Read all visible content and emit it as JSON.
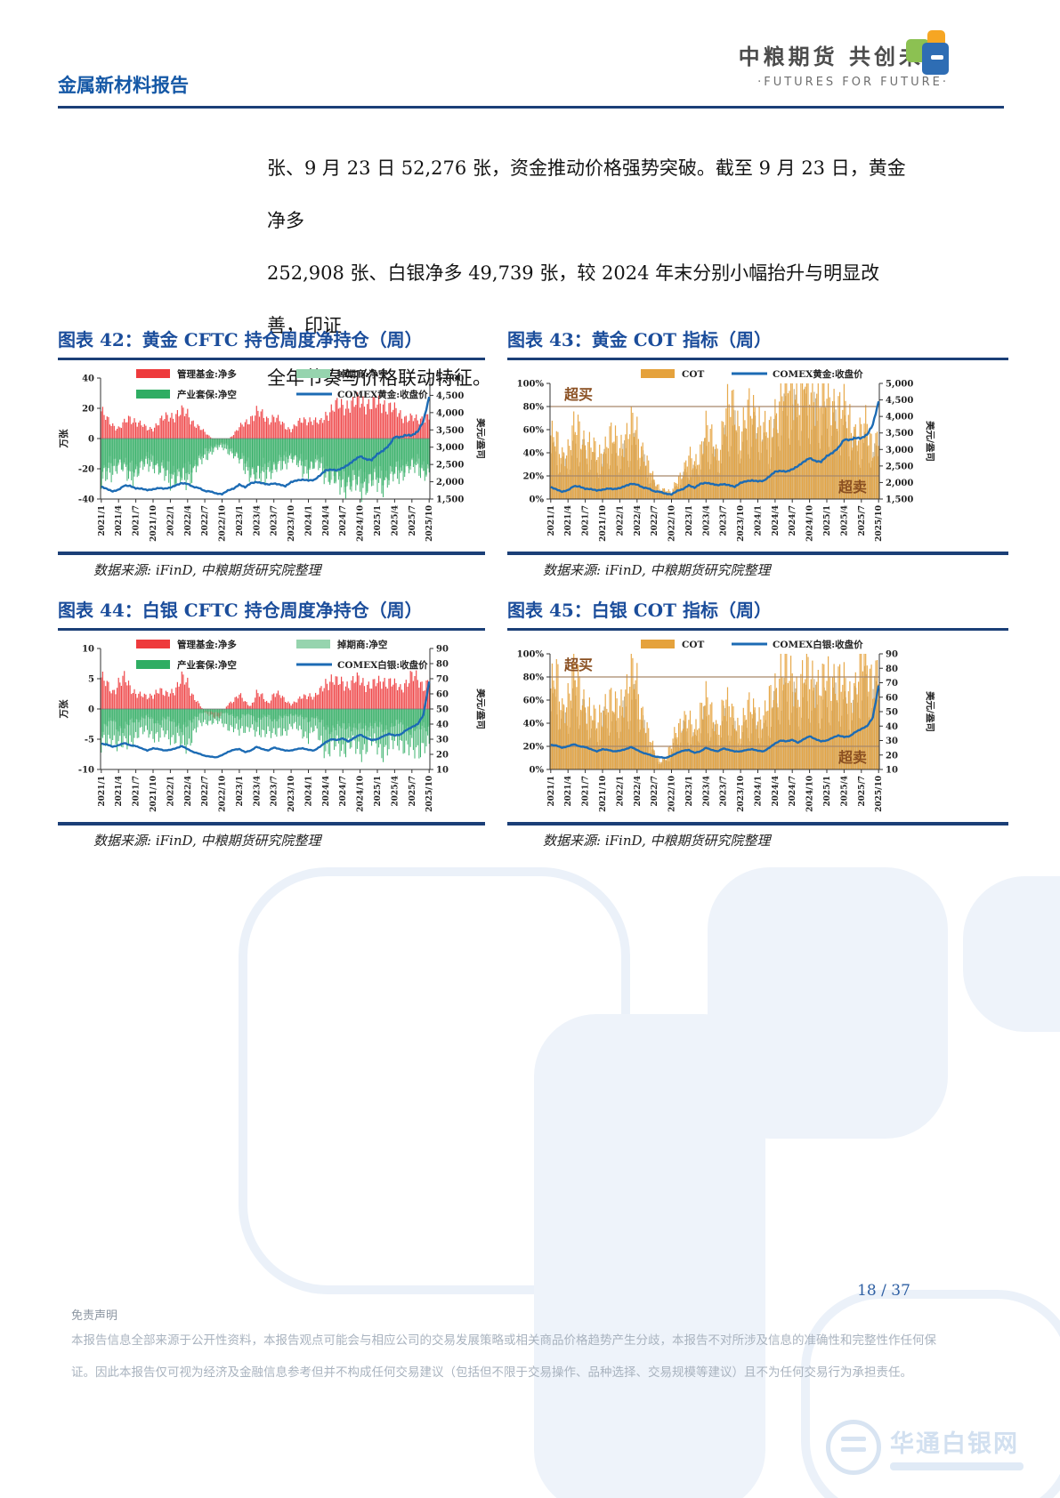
{
  "header": {
    "report_type": "金属新材料报告",
    "brand_cn": "中粮期货 共创未来",
    "brand_en": "·FUTURES FOR FUTURE·"
  },
  "paragraph": {
    "lines": [
      "张、9 月 23 日 52,276 张，资金推动价格强势突破。截至 9 月 23 日，黄金净多",
      "252,908 张、白银净多 49,739 张，较 2024 年末分别小幅抬升与明显改善，印证",
      "全年节奏与价格联动特征。"
    ]
  },
  "figures": [
    {
      "title": "图表 42：黄金 CFTC 持仓周度净持仓（周）",
      "source": "数据来源: iFinD,  中粮期货研究院整理"
    },
    {
      "title": "图表 43：黄金 COT 指标（周）",
      "source": "数据来源: iFinD,  中粮期货研究院整理"
    },
    {
      "title": "图表 44：白银 CFTC 持仓周度净持仓（周）",
      "source": "数据来源: iFinD,  中粮期货研究院整理"
    },
    {
      "title": "图表 45：白银 COT 指标（周）",
      "source": "数据来源: iFinD,  中粮期货研究院整理"
    }
  ],
  "footer": {
    "page_num": "18 / 37",
    "disclaimer_title": "免责声明",
    "disclaimer_lines": [
      "本报告信息全部来源于公开性资料，本报告观点可能会与相应公司的交易发展策略或相关商品价格趋势产生分歧，本报告不对所涉及信息的准确性和完整性作任何保",
      "证。因此本报告仅可视为经济及金融信息参考但并不构成任何交易建议（包括但不限于交易操作、品种选择、交易规模等建议）且不为任何交易行为承担责任。"
    ],
    "site_watermark": "华通白银网"
  },
  "colors": {
    "title_blue": "#1b4d9b",
    "navy": "#1b3f77",
    "red": "#ee3a3c",
    "light_green": "#96d4ae",
    "green": "#2fad63",
    "line_blue": "#1c6bb4",
    "orange": "#e5a23c",
    "tan": "#c8b592",
    "brown_note": "#8a4f21",
    "ref_line": "#a8886a"
  },
  "chart_data": {
    "note": "weekly series 2021/1-2025/10 sampled monthly (58 points per series); ticks shown quarterly",
    "x_ticks": [
      "2021/1",
      "2021/4",
      "2021/7",
      "2021/10",
      "2022/1",
      "2022/4",
      "2022/7",
      "2022/10",
      "2023/1",
      "2023/4",
      "2023/7",
      "2023/10",
      "2024/1",
      "2024/4",
      "2024/7",
      "2024/10",
      "2025/1",
      "2025/4",
      "2025/7",
      "2025/10"
    ],
    "months_per_tick": 3,
    "n_points": 58,
    "charts": [
      {
        "type": "bar+line",
        "title": "黄金CFTC持仓周度净持仓（周）",
        "legend": "grid",
        "left_axis": {
          "label": "万张",
          "min": -40,
          "max": 40,
          "step": 20,
          "format": "plain"
        },
        "right_axis": {
          "label": "美元/盎司",
          "min": 1500,
          "max": 5000,
          "step": 500,
          "format": "comma"
        },
        "bar_series": [
          {
            "name": "管理基金:净多",
            "color": "#ee3a3c",
            "width": 1.2,
            "values": [
              18,
              12,
              9,
              7,
              10,
              13,
              12,
              9,
              6,
              7,
              11,
              13,
              15,
              16,
              17,
              16,
              11,
              7,
              4,
              1,
              -2,
              -3,
              -1,
              3,
              7,
              10,
              14,
              17,
              15,
              13,
              14,
              11,
              8,
              6,
              9,
              12,
              13,
              11,
              10,
              16,
              19,
              21,
              22,
              23,
              22,
              25,
              24,
              22,
              22,
              24,
              21,
              18,
              16,
              14,
              13,
              12,
              14,
              15
            ]
          },
          {
            "name": "掉期商:净空",
            "color": "#96d4ae",
            "width": 2.0,
            "values": [
              -24,
              -19,
              -16,
              -14,
              -17,
              -20,
              -19,
              -16,
              -13,
              -13,
              -17,
              -19,
              -21,
              -22,
              -23,
              -22,
              -17,
              -13,
              -9,
              -6,
              -4,
              -3,
              -5,
              -8,
              -12,
              -15,
              -19,
              -22,
              -20,
              -17,
              -18,
              -15,
              -12,
              -10,
              -13,
              -16,
              -17,
              -15,
              -14,
              -20,
              -23,
              -25,
              -26,
              -27,
              -26,
              -28,
              -27,
              -25,
              -25,
              -26,
              -23,
              -21,
              -19,
              -17,
              -16,
              -15,
              -18,
              -20
            ]
          },
          {
            "name": "产业套保:净空",
            "color": "#2fad63",
            "width": 1.0,
            "values": [
              -30,
              -25,
              -21,
              -18,
              -22,
              -25,
              -24,
              -20,
              -17,
              -17,
              -22,
              -24,
              -26,
              -27,
              -28,
              -27,
              -22,
              -17,
              -13,
              -9,
              -7,
              -6,
              -8,
              -11,
              -15,
              -19,
              -23,
              -27,
              -25,
              -21,
              -22,
              -19,
              -16,
              -13,
              -17,
              -20,
              -21,
              -19,
              -18,
              -24,
              -27,
              -29,
              -30,
              -31,
              -30,
              -32,
              -31,
              -29,
              -29,
              -30,
              -27,
              -25,
              -23,
              -21,
              -20,
              -19,
              -22,
              -25
            ]
          }
        ],
        "line_series": [
          {
            "name": "COMEX黄金:收盘价",
            "color": "#1c6bb4",
            "values": [
              1860,
              1790,
              1720,
              1770,
              1890,
              1880,
              1810,
              1800,
              1760,
              1780,
              1820,
              1800,
              1830,
              1900,
              1960,
              1940,
              1850,
              1820,
              1730,
              1720,
              1660,
              1640,
              1750,
              1800,
              1920,
              1840,
              1960,
              1990,
              1960,
              1920,
              1950,
              1920,
              1870,
              1990,
              2040,
              2060,
              2040,
              2050,
              2180,
              2330,
              2350,
              2330,
              2400,
              2500,
              2630,
              2740,
              2650,
              2630,
              2800,
              2900,
              3050,
              3300,
              3290,
              3350,
              3340,
              3450,
              3750,
              4450
            ]
          }
        ],
        "ref_lines": [],
        "annotations": []
      },
      {
        "type": "bar+line",
        "title": "黄金COT指标（周）",
        "legend": "row",
        "left_axis": {
          "label": "",
          "min": 0,
          "max": 100,
          "step": 20,
          "format": "percent"
        },
        "right_axis": {
          "label": "美元/盎司",
          "min": 1500,
          "max": 5000,
          "step": 500,
          "format": "comma"
        },
        "bar_series": [
          {
            "name": "COT",
            "color": "#e5a23c",
            "width": 1.2,
            "backdrop_color": "#c8b592",
            "values": [
              55,
              48,
              40,
              45,
              58,
              60,
              52,
              46,
              38,
              42,
              55,
              50,
              48,
              55,
              62,
              58,
              45,
              28,
              15,
              10,
              8,
              5,
              18,
              25,
              35,
              30,
              45,
              60,
              50,
              42,
              65,
              78,
              82,
              60,
              68,
              80,
              75,
              60,
              55,
              78,
              92,
              98,
              100,
              96,
              99,
              100,
              95,
              90,
              85,
              90,
              80,
              75,
              70,
              60,
              55,
              65,
              48,
              55
            ]
          }
        ],
        "line_series": [
          {
            "name": "COMEX黄金:收盘价",
            "color": "#1c6bb4",
            "values": [
              1860,
              1790,
              1720,
              1770,
              1890,
              1880,
              1810,
              1800,
              1760,
              1780,
              1820,
              1800,
              1830,
              1900,
              1960,
              1940,
              1850,
              1820,
              1730,
              1720,
              1660,
              1640,
              1750,
              1800,
              1920,
              1840,
              1960,
              1990,
              1960,
              1920,
              1950,
              1920,
              1870,
              1990,
              2040,
              2060,
              2040,
              2050,
              2180,
              2330,
              2350,
              2330,
              2400,
              2500,
              2630,
              2740,
              2650,
              2630,
              2800,
              2900,
              3050,
              3300,
              3290,
              3350,
              3340,
              3450,
              3750,
              4450
            ]
          }
        ],
        "ref_lines": [
          80,
          20
        ],
        "annotations": [
          {
            "text": "超买",
            "pos": "top-left"
          },
          {
            "text": "超卖",
            "pos": "bottom-right"
          }
        ]
      },
      {
        "type": "bar+line",
        "title": "白银CFTC持仓周度净持仓（周）",
        "legend": "grid",
        "left_axis": {
          "label": "万张",
          "min": -10,
          "max": 10,
          "step": 5,
          "format": "plain"
        },
        "right_axis": {
          "label": "美元/盎司",
          "min": 10,
          "max": 90,
          "step": 10,
          "format": "plain"
        },
        "bar_series": [
          {
            "name": "管理基金:净多",
            "color": "#ee3a3c",
            "width": 1.2,
            "values": [
              5.2,
              3.8,
              2.8,
              4.5,
              4.8,
              3.5,
              2.8,
              2.2,
              1.8,
              2.5,
              3.2,
              2.2,
              2.8,
              3.5,
              4.8,
              4.2,
              2.2,
              0.8,
              -0.5,
              -1.2,
              -1.5,
              -0.8,
              0.8,
              1.5,
              2.2,
              1.2,
              0.5,
              2.5,
              2,
              1,
              2.5,
              2.2,
              1.5,
              0.8,
              1.2,
              2,
              2.5,
              1.8,
              2.8,
              4.5,
              4.8,
              4.2,
              4.5,
              4,
              4.5,
              4.8,
              4.2,
              3.8,
              4.2,
              4.8,
              4.5,
              3.8,
              3.5,
              4.5,
              5.2,
              4.8,
              4,
              4.5
            ]
          },
          {
            "name": "掉期商:净空",
            "color": "#96d4ae",
            "width": 2.0,
            "values": [
              -3.5,
              -2.5,
              -1.8,
              -3,
              -3.2,
              -2.2,
              -1.8,
              -1.5,
              -1.2,
              -1.8,
              -2.2,
              -1.5,
              -1.8,
              -2.2,
              -3.2,
              -2.8,
              -1.5,
              -0.8,
              -0.5,
              -0.4,
              -0.5,
              -0.6,
              -0.8,
              -1,
              -1.5,
              -1,
              -0.8,
              -1.8,
              -1.5,
              -1,
              -1.8,
              -1.5,
              -1.2,
              -0.8,
              -1,
              -1.4,
              -1.8,
              -1.2,
              -2,
              -3,
              -3.2,
              -2.8,
              -3,
              -2.6,
              -3,
              -3.2,
              -2.8,
              -2.5,
              -2.8,
              -3.2,
              -3,
              -2.5,
              -2.2,
              -3,
              -3.5,
              -3.2,
              -2.6,
              -3
            ]
          },
          {
            "name": "产业套保:净空",
            "color": "#2fad63",
            "width": 1.0,
            "values": [
              -6.5,
              -5.5,
              -4.5,
              -6,
              -6.2,
              -5,
              -4.5,
              -4,
              -3.5,
              -4.2,
              -5,
              -4,
              -4.5,
              -5,
              -6.2,
              -5.8,
              -4,
              -2.8,
              -2.2,
              -2,
              -2.2,
              -2.4,
              -2.8,
              -3.2,
              -4,
              -3.2,
              -2.8,
              -4.5,
              -4,
              -3.2,
              -4.5,
              -4,
              -3.5,
              -2.8,
              -3.2,
              -3.8,
              -4.5,
              -3.5,
              -4.8,
              -6.5,
              -6.8,
              -6,
              -6.5,
              -5.8,
              -6.5,
              -6.8,
              -6.2,
              -5.6,
              -6.2,
              -6.8,
              -6.5,
              -5.8,
              -5.2,
              -6.5,
              -7.2,
              -6.8,
              -5.8,
              -6.4
            ]
          }
        ],
        "line_series": [
          {
            "name": "COMEX白银:收盘价",
            "color": "#1c6bb4",
            "values": [
              27,
              26.5,
              25,
              26,
              27.5,
              26,
              25.5,
              24,
              22.5,
              24,
              23.5,
              22.5,
              23,
              24,
              25.5,
              23.5,
              21.5,
              20.5,
              19,
              18.5,
              18,
              19.5,
              21.5,
              23,
              23.5,
              21.5,
              22.5,
              25,
              23.5,
              22.5,
              24.5,
              23.5,
              22.5,
              22.5,
              23.5,
              24,
              23,
              22.5,
              25,
              28,
              30,
              29.5,
              30.5,
              28.5,
              31,
              33,
              31,
              29.5,
              30,
              32,
              33.5,
              32.5,
              33,
              36,
              38,
              40,
              46,
              68
            ]
          }
        ],
        "ref_lines": [],
        "annotations": []
      },
      {
        "type": "bar+line",
        "title": "白银COT指标（周）",
        "legend": "row",
        "left_axis": {
          "label": "",
          "min": 0,
          "max": 100,
          "step": 20,
          "format": "percent"
        },
        "right_axis": {
          "label": "美元/盎司",
          "min": 10,
          "max": 90,
          "step": 10,
          "format": "plain"
        },
        "bar_series": [
          {
            "name": "COT",
            "color": "#e5a23c",
            "width": 1.2,
            "backdrop_color": "#c8b592",
            "values": [
              70,
              78,
              55,
              65,
              80,
              72,
              60,
              48,
              40,
              55,
              62,
              50,
              60,
              68,
              80,
              75,
              50,
              30,
              15,
              8,
              10,
              20,
              38,
              45,
              40,
              32,
              55,
              60,
              45,
              38,
              58,
              52,
              45,
              38,
              48,
              55,
              50,
              42,
              58,
              75,
              85,
              80,
              82,
              70,
              78,
              85,
              80,
              72,
              75,
              85,
              80,
              70,
              65,
              78,
              95,
              90,
              82,
              88
            ]
          }
        ],
        "line_series": [
          {
            "name": "COMEX白银:收盘价",
            "color": "#1c6bb4",
            "values": [
              27,
              26.5,
              25,
              26,
              27.5,
              26,
              25.5,
              24,
              22.5,
              24,
              23.5,
              22.5,
              23,
              24,
              25.5,
              23.5,
              21.5,
              20.5,
              19,
              18.5,
              18,
              19.5,
              21.5,
              23,
              23.5,
              21.5,
              22.5,
              25,
              23.5,
              22.5,
              24.5,
              23.5,
              22.5,
              22.5,
              23.5,
              24,
              23,
              22.5,
              25,
              28,
              30,
              29.5,
              30.5,
              28.5,
              31,
              33,
              31,
              29.5,
              30,
              32,
              33.5,
              32.5,
              33,
              36,
              38,
              40,
              46,
              68
            ]
          }
        ],
        "ref_lines": [
          80,
          20
        ],
        "annotations": [
          {
            "text": "超买",
            "pos": "top-left"
          },
          {
            "text": "超卖",
            "pos": "bottom-right"
          }
        ]
      }
    ]
  }
}
